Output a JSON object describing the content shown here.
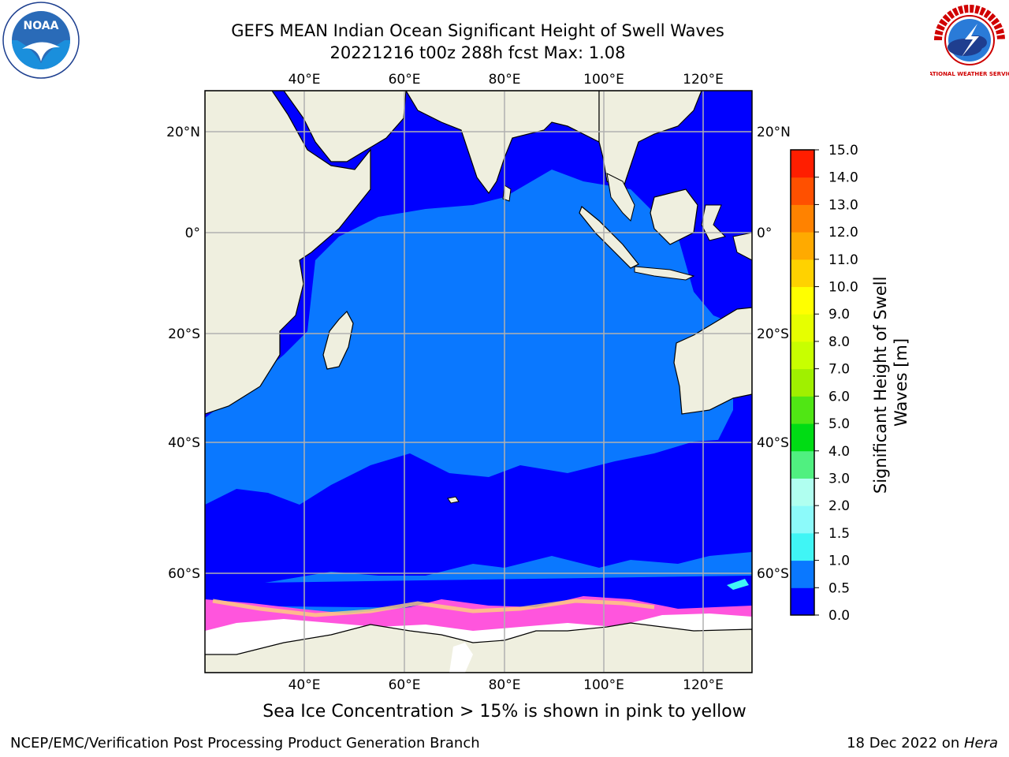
{
  "title_line1": "GEFS MEAN Indian Ocean Significant Height of Swell Waves",
  "title_line2": "20221216 t00z 288h fcst   Max: 1.08",
  "caption": "Sea Ice Concentration > 15% is shown in pink to yellow",
  "footer_left": "NCEP/EMC/Verification Post Processing Product Generation Branch",
  "footer_right_date": "18 Dec 2022 on ",
  "footer_right_host": "Hera",
  "logos": {
    "left": "NOAA",
    "right": "NATIONAL WEATHER SERVICE"
  },
  "map": {
    "lon_labels": [
      "40°E",
      "60°E",
      "80°E",
      "100°E",
      "120°E"
    ],
    "lat_labels": [
      "20°N",
      "0°",
      "20°S",
      "40°S",
      "60°S"
    ],
    "colors": {
      "ocean_low": "#0000ff",
      "ocean_mid": "#0a78ff",
      "land": "#efefdf",
      "ice_pink": "#ff55dd",
      "ice_white": "#ffffff",
      "grid": "#b0b0b0"
    }
  },
  "colorbar": {
    "label": "Significant Height of Swell Waves [m]",
    "ticks": [
      "0.0",
      "0.5",
      "1.0",
      "1.5",
      "2.0",
      "3.0",
      "4.0",
      "5.0",
      "6.0",
      "7.0",
      "8.0",
      "9.0",
      "10.0",
      "11.0",
      "12.0",
      "13.0",
      "14.0",
      "15.0"
    ],
    "colors": [
      "#0000ff",
      "#0a78ff",
      "#00e6f0",
      "#40f5f5",
      "#8cfafa",
      "#b0fff0",
      "#50f080",
      "#00dc14",
      "#50e614",
      "#a0f000",
      "#c8ff00",
      "#e6ff00",
      "#ffff00",
      "#ffd200",
      "#ffaa00",
      "#ff8200",
      "#ff5000",
      "#ff1e00",
      "#ff0000"
    ]
  }
}
